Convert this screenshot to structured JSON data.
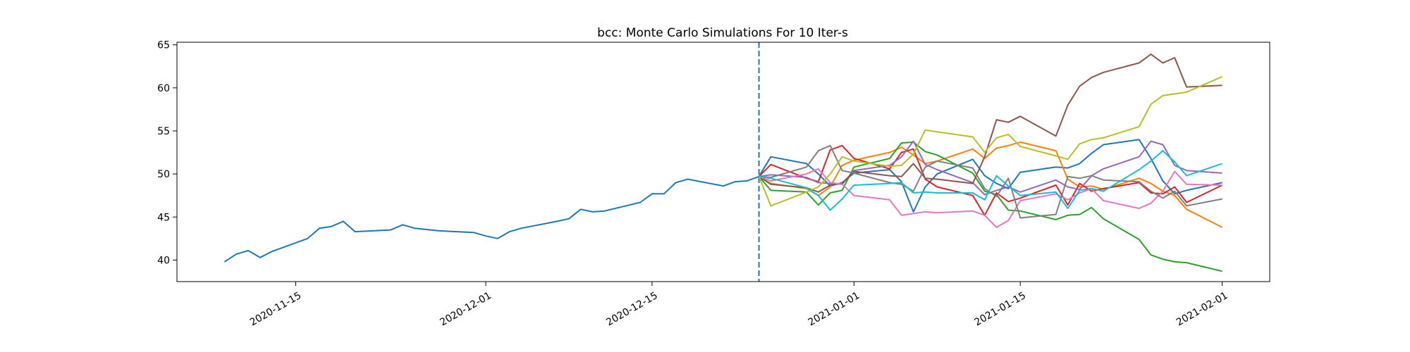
{
  "chart_data": {
    "type": "line",
    "title": "bcc: Monte Carlo Simulations For 10 Iter-s",
    "xlabel": "",
    "ylabel": "",
    "xlim": [
      "2020-11-05",
      "2021-02-05"
    ],
    "ylim": [
      37.5,
      65.3
    ],
    "grid": false,
    "x_ticks": [
      "2020-11-15",
      "2020-12-01",
      "2020-12-15",
      "2021-01-01",
      "2021-01-15",
      "2021-02-01"
    ],
    "x_tick_labels": [
      "2020-11-15",
      "2020-12-01",
      "2020-12-15",
      "2021-01-01",
      "2021-01-15",
      "2021-02-01"
    ],
    "y_ticks": [
      40,
      45,
      50,
      55,
      60,
      65
    ],
    "y_tick_labels": [
      "40",
      "45",
      "50",
      "55",
      "60",
      "65"
    ],
    "vline": {
      "x": "2020-12-24",
      "style": "dashed",
      "color": "#1f77b4"
    },
    "history": {
      "color": "#1f77b4",
      "points": [
        [
          "2020-11-09",
          39.8
        ],
        [
          "2020-11-10",
          40.7
        ],
        [
          "2020-11-11",
          41.1
        ],
        [
          "2020-11-12",
          40.3
        ],
        [
          "2020-11-13",
          41.0
        ],
        [
          "2020-11-16",
          42.5
        ],
        [
          "2020-11-17",
          43.7
        ],
        [
          "2020-11-18",
          43.9
        ],
        [
          "2020-11-19",
          44.5
        ],
        [
          "2020-11-20",
          43.3
        ],
        [
          "2020-11-23",
          43.5
        ],
        [
          "2020-11-24",
          44.1
        ],
        [
          "2020-11-25",
          43.7
        ],
        [
          "2020-11-27",
          43.4
        ],
        [
          "2020-11-30",
          43.2
        ],
        [
          "2020-12-01",
          42.8
        ],
        [
          "2020-12-02",
          42.5
        ],
        [
          "2020-12-03",
          43.3
        ],
        [
          "2020-12-04",
          43.7
        ],
        [
          "2020-12-07",
          44.5
        ],
        [
          "2020-12-08",
          44.8
        ],
        [
          "2020-12-09",
          45.9
        ],
        [
          "2020-12-10",
          45.6
        ],
        [
          "2020-12-11",
          45.7
        ],
        [
          "2020-12-14",
          46.7
        ],
        [
          "2020-12-15",
          47.7
        ],
        [
          "2020-12-16",
          47.7
        ],
        [
          "2020-12-17",
          49.0
        ],
        [
          "2020-12-18",
          49.4
        ],
        [
          "2020-12-21",
          48.6
        ],
        [
          "2020-12-22",
          49.1
        ],
        [
          "2020-12-23",
          49.2
        ],
        [
          "2020-12-24",
          49.7
        ]
      ]
    },
    "sim_dates": [
      "2020-12-24",
      "2020-12-25",
      "2020-12-28",
      "2020-12-29",
      "2020-12-30",
      "2020-12-31",
      "2021-01-01",
      "2021-01-04",
      "2021-01-05",
      "2021-01-06",
      "2021-01-07",
      "2021-01-08",
      "2021-01-11",
      "2021-01-12",
      "2021-01-13",
      "2021-01-14",
      "2021-01-15",
      "2021-01-18",
      "2021-01-19",
      "2021-01-20",
      "2021-01-21",
      "2021-01-22",
      "2021-01-25",
      "2021-01-26",
      "2021-01-27",
      "2021-01-28",
      "2021-01-29",
      "2021-02-01"
    ],
    "series": [
      {
        "color": "#1f77b4",
        "values": [
          49.7,
          52.0,
          51.2,
          50.0,
          48.6,
          49.0,
          50.1,
          50.5,
          49.1,
          45.6,
          48.5,
          50.0,
          51.7,
          49.8,
          48.9,
          48.3,
          50.2,
          50.8,
          50.7,
          51.2,
          52.4,
          53.4,
          54.0,
          51.8,
          49.2,
          47.7,
          48.1,
          49.0
        ]
      },
      {
        "color": "#ff7f0e",
        "values": [
          49.7,
          48.9,
          48.3,
          47.5,
          48.5,
          51.0,
          51.6,
          52.5,
          53.1,
          52.2,
          51.2,
          51.5,
          52.9,
          51.8,
          53.0,
          53.3,
          53.7,
          52.7,
          49.4,
          48.5,
          48.6,
          48.2,
          49.5,
          48.9,
          48.0,
          47.5,
          45.9,
          43.8
        ]
      },
      {
        "color": "#2ca02c",
        "values": [
          49.7,
          48.1,
          47.9,
          46.4,
          47.8,
          48.1,
          50.8,
          51.8,
          53.6,
          53.7,
          52.6,
          52.2,
          50.1,
          48.0,
          47.6,
          45.8,
          45.7,
          44.7,
          45.2,
          45.3,
          46.1,
          44.8,
          42.4,
          40.6,
          40.1,
          39.8,
          39.7,
          38.7
        ]
      },
      {
        "color": "#d62728",
        "values": [
          49.7,
          51.1,
          49.5,
          49.1,
          52.8,
          53.3,
          51.8,
          50.6,
          52.5,
          52.9,
          49.4,
          48.5,
          47.5,
          45.2,
          47.8,
          46.8,
          47.2,
          48.7,
          46.4,
          48.9,
          48.0,
          48.3,
          49.0,
          47.8,
          47.7,
          48.5,
          46.7,
          48.7
        ]
      },
      {
        "color": "#9467bd",
        "values": [
          49.7,
          49.9,
          49.6,
          49.0,
          48.9,
          48.8,
          50.4,
          51.0,
          52.0,
          53.8,
          51.1,
          50.5,
          49.0,
          47.6,
          48.1,
          48.5,
          47.9,
          49.3,
          48.5,
          48.2,
          49.8,
          50.6,
          52.0,
          53.8,
          53.4,
          51.0,
          50.4,
          50.1
        ]
      },
      {
        "color": "#8c564b",
        "values": [
          49.7,
          48.8,
          48.4,
          47.9,
          48.7,
          48.9,
          50.3,
          49.8,
          49.7,
          51.2,
          49.5,
          49.4,
          48.9,
          52.0,
          56.3,
          56.0,
          56.7,
          54.4,
          58.0,
          60.2,
          61.2,
          61.8,
          62.9,
          63.9,
          62.9,
          63.5,
          60.1,
          60.3
        ]
      },
      {
        "color": "#e377c2",
        "values": [
          49.7,
          49.2,
          50.0,
          50.6,
          49.0,
          48.8,
          47.5,
          47.0,
          45.2,
          45.4,
          45.6,
          45.5,
          45.7,
          45.2,
          43.8,
          44.6,
          46.9,
          47.7,
          47.0,
          47.8,
          48.3,
          46.9,
          46.0,
          46.6,
          48.0,
          50.3,
          48.8,
          48.7
        ]
      },
      {
        "color": "#7f7f7f",
        "values": [
          49.7,
          49.6,
          50.8,
          52.7,
          53.3,
          50.4,
          50.1,
          49.0,
          48.8,
          48.0,
          50.8,
          51.5,
          50.7,
          48.3,
          47.4,
          49.5,
          44.9,
          45.3,
          49.7,
          49.5,
          49.8,
          49.3,
          49.1,
          48.0,
          47.2,
          48.0,
          46.3,
          47.1
        ]
      },
      {
        "color": "#bcbd22",
        "values": [
          49.7,
          46.3,
          47.9,
          48.5,
          50.0,
          52.0,
          51.5,
          50.9,
          51.0,
          52.3,
          55.1,
          54.9,
          54.3,
          52.5,
          54.2,
          54.6,
          53.2,
          52.1,
          51.7,
          53.5,
          54.0,
          54.2,
          55.5,
          58.1,
          59.1,
          59.3,
          59.5,
          61.3
        ]
      },
      {
        "color": "#17becf",
        "values": [
          49.7,
          49.5,
          48.4,
          47.5,
          45.8,
          47.1,
          48.7,
          48.9,
          49.0,
          47.8,
          47.9,
          47.8,
          47.8,
          47.0,
          49.8,
          48.6,
          47.5,
          47.9,
          46.0,
          48.1,
          48.3,
          48.0,
          50.5,
          51.5,
          52.7,
          51.4,
          49.8,
          51.2
        ]
      }
    ]
  }
}
